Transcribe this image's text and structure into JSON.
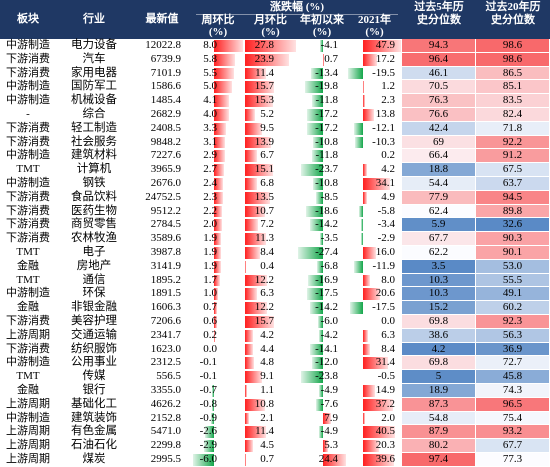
{
  "colors": {
    "header_bg": "#1f3864",
    "bar_positive": "#ff1f1f",
    "bar_negative": "#13a64a",
    "heat_low": "#5a8ac6",
    "heat_mid": "#fcfcff",
    "heat_high": "#f8696b"
  },
  "chart_data": {
    "type": "table",
    "header": {
      "plate": "板块",
      "industry": "行业",
      "latest": "最新值",
      "change_group": "涨跌幅 (%)",
      "week": "周环比",
      "week_unit": "(%)",
      "month": "月环比",
      "month_unit": "(%)",
      "ytd": "年初以来",
      "ytd_unit": "(%)",
      "y2021": "2021年",
      "y2021_unit": "(%)",
      "pct5_line1": "过去5年历",
      "pct5_line2": "史分位数",
      "pct20_line1": "过去20年历",
      "pct20_line2": "史分位数"
    },
    "rows": [
      {
        "plate": "中游制造",
        "industry": "电力设备",
        "latest": "12022.8",
        "week": "8.0",
        "month": "27.8",
        "ytd": "-4.1",
        "y2021": "47.9",
        "pct5": "94.3",
        "pct20": "98.6"
      },
      {
        "plate": "下游消费",
        "industry": "汽车",
        "latest": "6739.9",
        "week": "5.8",
        "month": "23.9",
        "ytd": "0.7",
        "y2021": "17.2",
        "pct5": "96.4",
        "pct20": "98.6"
      },
      {
        "plate": "下游消费",
        "industry": "家用电器",
        "latest": "7101.9",
        "week": "5.5",
        "month": "11.4",
        "ytd": "-13.4",
        "y2021": "-19.5",
        "pct5": "46.1",
        "pct20": "86.5"
      },
      {
        "plate": "中游制造",
        "industry": "国防军工",
        "latest": "1586.6",
        "week": "5.0",
        "month": "15.7",
        "ytd": "-19.8",
        "y2021": "1.2",
        "pct5": "70.5",
        "pct20": "85.1"
      },
      {
        "plate": "中游制造",
        "industry": "机械设备",
        "latest": "1485.4",
        "week": "4.1",
        "month": "15.3",
        "ytd": "-11.8",
        "y2021": "2.3",
        "pct5": "76.3",
        "pct20": "83.5"
      },
      {
        "plate": "-",
        "industry": "综合",
        "latest": "2682.9",
        "week": "4.0",
        "month": "5.2",
        "ytd": "-17.2",
        "y2021": "13.8",
        "pct5": "76.6",
        "pct20": "82.4"
      },
      {
        "plate": "下游消费",
        "industry": "轻工制造",
        "latest": "2408.5",
        "week": "3.3",
        "month": "9.5",
        "ytd": "-17.2",
        "y2021": "-12.1",
        "pct5": "42.4",
        "pct20": "71.8"
      },
      {
        "plate": "下游消费",
        "industry": "社会服务",
        "latest": "9848.2",
        "week": "3.1",
        "month": "13.9",
        "ytd": "-10.8",
        "y2021": "-10.3",
        "pct5": "69",
        "pct20": "92.2"
      },
      {
        "plate": "中游制造",
        "industry": "建筑材料",
        "latest": "7227.6",
        "week": "2.9",
        "month": "6.7",
        "ytd": "-11.8",
        "y2021": "0.2",
        "pct5": "66.4",
        "pct20": "91.2"
      },
      {
        "plate": "TMT",
        "industry": "计算机",
        "latest": "3965.9",
        "week": "2.7",
        "month": "15.1",
        "ytd": "-23.7",
        "y2021": "4.2",
        "pct5": "18.8",
        "pct20": "67.5"
      },
      {
        "plate": "中游制造",
        "industry": "钢铁",
        "latest": "2676.0",
        "week": "2.4",
        "month": "6.8",
        "ytd": "-10.8",
        "y2021": "34.1",
        "pct5": "54.4",
        "pct20": "63.7"
      },
      {
        "plate": "下游消费",
        "industry": "食品饮料",
        "latest": "24752.5",
        "week": "2.3",
        "month": "13.5",
        "ytd": "-8.5",
        "y2021": "4.9",
        "pct5": "77.9",
        "pct20": "94.5"
      },
      {
        "plate": "下游消费",
        "industry": "医药生物",
        "latest": "9512.2",
        "week": "2.2",
        "month": "10.7",
        "ytd": "-18.6",
        "y2021": "-5.8",
        "pct5": "62.4",
        "pct20": "89.8"
      },
      {
        "plate": "下游消费",
        "industry": "商贸零售",
        "latest": "2784.5",
        "week": "2.0",
        "month": "7.2",
        "ytd": "-14.2",
        "y2021": "-3.4",
        "pct5": "5.9",
        "pct20": "32.6"
      },
      {
        "plate": "下游消费",
        "industry": "农林牧渔",
        "latest": "3589.6",
        "week": "1.9",
        "month": "11.3",
        "ytd": "-3.5",
        "y2021": "-2.9",
        "pct5": "67.7",
        "pct20": "90.3"
      },
      {
        "plate": "TMT",
        "industry": "电子",
        "latest": "3987.8",
        "week": "1.9",
        "month": "8.4",
        "ytd": "-27.4",
        "y2021": "16.0",
        "pct5": "62.2",
        "pct20": "90.1"
      },
      {
        "plate": "金融",
        "industry": "房地产",
        "latest": "3141.9",
        "week": "1.9",
        "month": "0.4",
        "ytd": "-6.8",
        "y2021": "-11.9",
        "pct5": "3.5",
        "pct20": "53.0"
      },
      {
        "plate": "TMT",
        "industry": "通信",
        "latest": "1895.2",
        "week": "1.7",
        "month": "12.2",
        "ytd": "-16.9",
        "y2021": "8.0",
        "pct5": "10.3",
        "pct20": "55.5"
      },
      {
        "plate": "中游制造",
        "industry": "环保",
        "latest": "1891.5",
        "week": "1.0",
        "month": "6.3",
        "ytd": "-17.5",
        "y2021": "20.6",
        "pct5": "10.3",
        "pct20": "49.1"
      },
      {
        "plate": "金融",
        "industry": "非银金融",
        "latest": "1606.3",
        "week": "0.7",
        "month": "12.2",
        "ytd": "-14.2",
        "y2021": "-17.5",
        "pct5": "15.2",
        "pct20": "60.2"
      },
      {
        "plate": "下游消费",
        "industry": "美容护理",
        "latest": "7206.6",
        "week": "0.6",
        "month": "15.7",
        "ytd": "-6.0",
        "y2021": "0.0",
        "pct5": "69.8",
        "pct20": "92.3"
      },
      {
        "plate": "上游周期",
        "industry": "交通运输",
        "latest": "2341.7",
        "week": "0.2",
        "month": "4.2",
        "ytd": "-4.2",
        "y2021": "6.3",
        "pct5": "38.6",
        "pct20": "56.3"
      },
      {
        "plate": "下游消费",
        "industry": "纺织服饰",
        "latest": "1623.0",
        "week": "0.0",
        "month": "4.4",
        "ytd": "-14.1",
        "y2021": "8.4",
        "pct5": "4.2",
        "pct20": "36.9"
      },
      {
        "plate": "中游制造",
        "industry": "公用事业",
        "latest": "2312.5",
        "week": "-0.1",
        "month": "4.8",
        "ytd": "-12.0",
        "y2021": "31.4",
        "pct5": "69.8",
        "pct20": "72.7"
      },
      {
        "plate": "TMT",
        "industry": "传媒",
        "latest": "556.5",
        "week": "-0.1",
        "month": "9.1",
        "ytd": "-23.8",
        "y2021": "-0.5",
        "pct5": "5",
        "pct20": "45.8"
      },
      {
        "plate": "金融",
        "industry": "银行",
        "latest": "3355.0",
        "week": "-0.7",
        "month": "1.1",
        "ytd": "-4.9",
        "y2021": "14.9",
        "pct5": "18.9",
        "pct20": "74.3"
      },
      {
        "plate": "上游周期",
        "industry": "基础化工",
        "latest": "4626.2",
        "week": "-0.8",
        "month": "10.8",
        "ytd": "-7.6",
        "y2021": "37.2",
        "pct5": "87.3",
        "pct20": "96.5"
      },
      {
        "plate": "中游制造",
        "industry": "建筑装饰",
        "latest": "2152.8",
        "week": "-0.9",
        "month": "2.1",
        "ytd": "7.9",
        "y2021": "2.0",
        "pct5": "54.8",
        "pct20": "75.4"
      },
      {
        "plate": "上游周期",
        "industry": "有色金属",
        "latest": "5471.0",
        "week": "-2.6",
        "month": "11.4",
        "ytd": "-4.9",
        "y2021": "40.5",
        "pct5": "87.9",
        "pct20": "93.2"
      },
      {
        "plate": "上游周期",
        "industry": "石油石化",
        "latest": "2299.8",
        "week": "-2.9",
        "month": "4.5",
        "ytd": "5.3",
        "y2021": "20.3",
        "pct5": "80.2",
        "pct20": "67.7"
      },
      {
        "plate": "上游周期",
        "industry": "煤炭",
        "latest": "2995.5",
        "week": "-6.0",
        "month": "0.7",
        "ytd": "24.4",
        "y2021": "39.6",
        "pct5": "97.4",
        "pct20": "77.3"
      }
    ]
  }
}
